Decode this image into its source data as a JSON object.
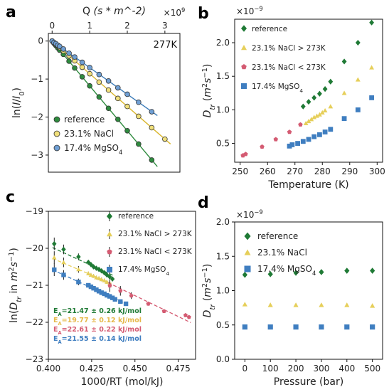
{
  "figure_labels": {
    "a": "a",
    "b": "b",
    "c": "c",
    "d": "d"
  },
  "chart_data": [
    {
      "panel": "a",
      "type": "scatter",
      "xlabel": "Q (s*m^-2)",
      "xlabel_top": "Q",
      "xlabel_top_unit": "(s * m^-2)",
      "x_exponent": "×10^9",
      "ylabel": "ln(I/I0)",
      "xlim": [
        -0.1,
        3.4
      ],
      "ylim": [
        -3.45,
        0.2
      ],
      "xticks": [
        "0",
        "1",
        "2",
        "3"
      ],
      "yticks": [
        "0",
        "−1",
        "−2",
        "−3"
      ],
      "annotation": "277K",
      "legend_position": "lower-left",
      "series": [
        {
          "name": "reference",
          "color": "#2e8b3e",
          "slope": -1.18,
          "x": [
            0.0,
            0.05,
            0.1,
            0.15,
            0.2,
            0.3,
            0.45,
            0.6,
            0.8,
            1.0,
            1.25,
            1.5,
            1.75,
            2.0,
            2.3,
            2.65
          ],
          "y": [
            0.0,
            -0.06,
            -0.12,
            -0.18,
            -0.24,
            -0.35,
            -0.53,
            -0.71,
            -0.94,
            -1.18,
            -1.47,
            -1.77,
            -2.06,
            -2.36,
            -2.71,
            -3.13
          ]
        },
        {
          "name": "23.1% NaCl",
          "color": "#f0df7a",
          "slope": -0.86,
          "x": [
            0.0,
            0.05,
            0.1,
            0.15,
            0.2,
            0.3,
            0.45,
            0.6,
            0.8,
            1.0,
            1.25,
            1.5,
            1.75,
            2.0,
            2.3,
            2.65,
            3.0
          ],
          "y": [
            0.0,
            -0.04,
            -0.09,
            -0.13,
            -0.17,
            -0.26,
            -0.39,
            -0.52,
            -0.69,
            -0.86,
            -1.08,
            -1.29,
            -1.51,
            -1.72,
            -1.98,
            -2.28,
            -2.58
          ]
        },
        {
          "name": "17.4% MgSO4",
          "color": "#6f9fd4",
          "slope": -0.7,
          "x": [
            0.0,
            0.05,
            0.1,
            0.15,
            0.2,
            0.3,
            0.45,
            0.6,
            0.8,
            1.0,
            1.25,
            1.5,
            1.75,
            2.0,
            2.3,
            2.65
          ],
          "y": [
            0.0,
            -0.04,
            -0.07,
            -0.11,
            -0.14,
            -0.21,
            -0.32,
            -0.42,
            -0.56,
            -0.7,
            -0.88,
            -1.05,
            -1.23,
            -1.4,
            -1.61,
            -1.86
          ]
        }
      ]
    },
    {
      "panel": "b",
      "type": "scatter",
      "xlabel": "Temperature (K)",
      "ylabel": "D_tr (m^2 s^-1)",
      "y_exponent": "×10^-9",
      "xlim": [
        248,
        302
      ],
      "ylim": [
        0.22,
        2.35
      ],
      "xticks": [
        "250",
        "260",
        "270",
        "280",
        "290",
        "300"
      ],
      "yticks": [
        "0.5",
        "1.0",
        "1.5",
        "2.0"
      ],
      "legend_position": "upper-left",
      "series": [
        {
          "name": "reference",
          "color": "#1f7a35",
          "marker": "diamond",
          "x": [
            273,
            275,
            277,
            279,
            281,
            283,
            288,
            293,
            298
          ],
          "y": [
            1.05,
            1.12,
            1.18,
            1.24,
            1.31,
            1.42,
            1.72,
            2.0,
            2.3
          ]
        },
        {
          "name": "23.1% NaCl > 273K",
          "color": "#e6cf5a",
          "marker": "triangle",
          "x": [
            274,
            275,
            276,
            277,
            278,
            279,
            280,
            281,
            283,
            288,
            293,
            298
          ],
          "y": [
            0.8,
            0.83,
            0.86,
            0.89,
            0.91,
            0.93,
            0.96,
            0.99,
            1.05,
            1.25,
            1.45,
            1.63
          ]
        },
        {
          "name": "23.1% NaCl < 273K",
          "color": "#d45b72",
          "marker": "pentagon",
          "x": [
            251,
            252,
            258,
            263,
            268,
            272
          ],
          "y": [
            0.32,
            0.34,
            0.45,
            0.56,
            0.67,
            0.78
          ]
        },
        {
          "name": "17.4% MgSO4",
          "color": "#3f7ec0",
          "marker": "square",
          "x": [
            268,
            269,
            271,
            273,
            275,
            277,
            279,
            281,
            283,
            288,
            293,
            298
          ],
          "y": [
            0.46,
            0.48,
            0.5,
            0.53,
            0.56,
            0.6,
            0.63,
            0.67,
            0.71,
            0.87,
            1.0,
            1.18
          ]
        }
      ]
    },
    {
      "panel": "c",
      "type": "scatter",
      "xlabel": "1000/RT (mol/kJ)",
      "ylabel": "ln(D_tr in m^2 s^-1)",
      "xlim": [
        0.4,
        0.485
      ],
      "ylim": [
        -23.0,
        -19.0
      ],
      "xticks": [
        "0.400",
        "0.425",
        "0.450",
        "0.475"
      ],
      "yticks": [
        "−23",
        "−22",
        "−21",
        "−20",
        "−19"
      ],
      "legend_position": "upper-right",
      "series": [
        {
          "name": "reference",
          "color": "#1f7a35",
          "marker": "diamond",
          "slope": -21.47,
          "x": [
            0.4034,
            0.4088,
            0.4174,
            0.4231,
            0.4246,
            0.4261,
            0.4277,
            0.4292,
            0.4307,
            0.4323,
            0.4338,
            0.4354,
            0.437
          ],
          "y": [
            -19.88,
            -20.03,
            -20.23,
            -20.38,
            -20.44,
            -20.5,
            -20.54,
            -20.57,
            -20.61,
            -20.66,
            -20.72,
            -20.77,
            -20.83
          ]
        },
        {
          "name": "23.1% NaCl > 273K",
          "color": "#e6cf5a",
          "marker": "triangle",
          "slope": -19.77,
          "x": [
            0.4034,
            0.4088,
            0.4174,
            0.4231,
            0.4246,
            0.4261,
            0.4277,
            0.4292,
            0.4307,
            0.4323,
            0.4338,
            0.4354
          ],
          "y": [
            -20.25,
            -20.38,
            -20.57,
            -20.68,
            -20.72,
            -20.75,
            -20.79,
            -20.81,
            -20.84,
            -20.87,
            -20.91,
            -20.95
          ]
        },
        {
          "name": "23.1% NaCl < 273K",
          "color": "#d45b72",
          "marker": "pentagon",
          "slope": -22.61,
          "x": [
            0.4355,
            0.4416,
            0.4479,
            0.4577,
            0.4668,
            0.4792,
            0.4812
          ],
          "y": [
            -21.01,
            -21.15,
            -21.28,
            -21.5,
            -21.7,
            -21.81,
            -21.86
          ]
        },
        {
          "name": "17.4% MgSO4",
          "color": "#3f7ec0",
          "marker": "square",
          "slope": -21.55,
          "x": [
            0.4034,
            0.4088,
            0.4174,
            0.4231,
            0.4246,
            0.4261,
            0.4277,
            0.4292,
            0.4307,
            0.4323,
            0.4338,
            0.4354,
            0.437,
            0.4385,
            0.4416,
            0.4448
          ],
          "y": [
            -20.58,
            -20.72,
            -20.91,
            -21.0,
            -21.04,
            -21.08,
            -21.12,
            -21.16,
            -21.2,
            -21.23,
            -21.27,
            -21.3,
            -21.34,
            -21.38,
            -21.44,
            -21.5
          ]
        }
      ],
      "activation_energies": [
        {
          "text": "E_A=21.47 ± 0.26 kJ/mol",
          "color": "#1f7a35"
        },
        {
          "text": "E_A=19.77 ± 0.12 kJ/mol",
          "color": "#e6b84a"
        },
        {
          "text": "E_A=22.61 ± 0.22 kJ/mol",
          "color": "#d45b72"
        },
        {
          "text": "E_A=21.55 ± 0.14 kJ/mol",
          "color": "#3f7ec0"
        }
      ]
    },
    {
      "panel": "d",
      "type": "scatter",
      "xlabel": "Pressure (bar)",
      "ylabel": "D_tr (m^2 s^-1)",
      "y_exponent": "×10^-9",
      "xlim": [
        -40,
        540
      ],
      "ylim": [
        0.0,
        2.0
      ],
      "xticks": [
        "0",
        "100",
        "200",
        "300",
        "400",
        "500"
      ],
      "yticks": [
        "0.0",
        "0.5",
        "1.0",
        "1.5",
        "2.0"
      ],
      "legend_position": "upper-left",
      "series": [
        {
          "name": "reference",
          "color": "#1f7a35",
          "marker": "diamond",
          "x": [
            0,
            100,
            200,
            300,
            400,
            500
          ],
          "y": [
            1.23,
            1.24,
            1.26,
            1.27,
            1.29,
            1.29
          ]
        },
        {
          "name": "23.1% NaCl",
          "color": "#e6cf5a",
          "marker": "triangle",
          "x": [
            0,
            100,
            200,
            300,
            400,
            500
          ],
          "y": [
            0.8,
            0.79,
            0.79,
            0.79,
            0.79,
            0.78
          ]
        },
        {
          "name": "17.4% MgSO4",
          "color": "#3f7ec0",
          "marker": "square",
          "x": [
            0,
            100,
            200,
            300,
            400,
            500
          ],
          "y": [
            0.47,
            0.47,
            0.47,
            0.47,
            0.47,
            0.47
          ]
        }
      ]
    }
  ]
}
